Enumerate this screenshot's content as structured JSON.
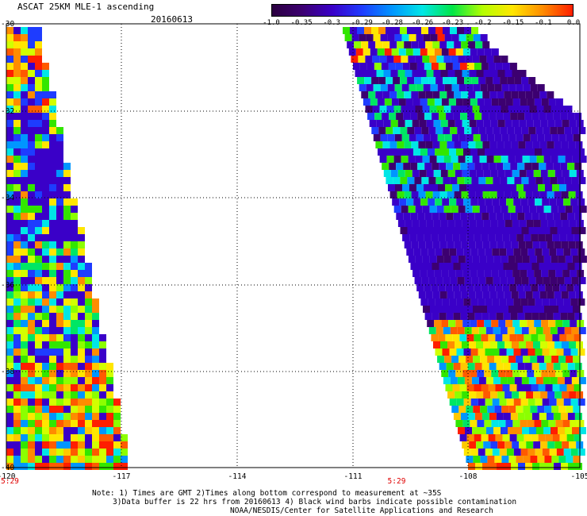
{
  "header": {
    "title": "ASCAT 25KM MLE-1 ascending",
    "date": "20160613"
  },
  "colorbar": {
    "tick_labels": [
      "-1.0",
      "-0.35",
      "-0.3",
      "-0.29",
      "-0.28",
      "-0.26",
      "-0.23",
      "-0.2",
      "-0.15",
      "-0.1",
      "0.0"
    ],
    "colors": [
      "#2b0040",
      "#3c0070",
      "#3a00c8",
      "#1e3cff",
      "#0096ff",
      "#00e6e6",
      "#00e646",
      "#b4ff00",
      "#ffe600",
      "#ff8c00",
      "#ff1e00"
    ]
  },
  "map": {
    "lat_labels": [
      "-30",
      "-32",
      "-34",
      "-36",
      "-38",
      "-40"
    ],
    "lon_labels": [
      "-120",
      "-117",
      "-114",
      "-111",
      "-108",
      "-105"
    ],
    "time_labels": [
      "5:29",
      "5:29"
    ],
    "time_color": "#e00000"
  },
  "footer": {
    "line1": "Note: 1) Times are GMT 2)Times along bottom correspond to measurement at ~35S",
    "line2": "3)Data buffer is 22 hrs from 20160613 4) Black wind barbs indicate possible contamination",
    "line3": "NOAA/NESDIS/Center for Satellite Applications and Research"
  }
}
